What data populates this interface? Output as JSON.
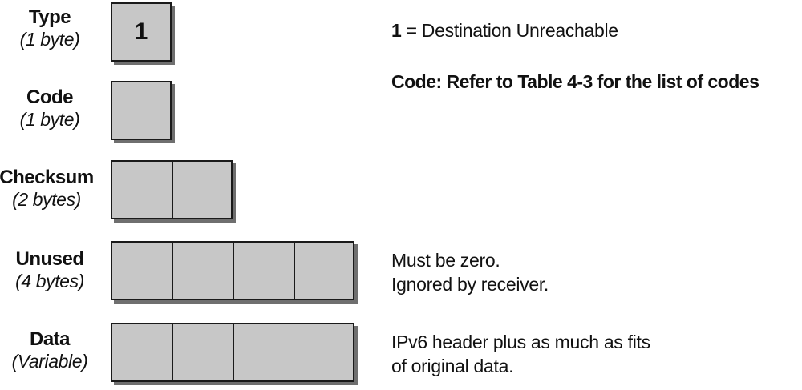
{
  "fields": [
    {
      "name": "Type",
      "size": "(1 byte)",
      "value": "1"
    },
    {
      "name": "Code",
      "size": "(1 byte)",
      "value": ""
    },
    {
      "name": "Checksum",
      "size": "(2 bytes)"
    },
    {
      "name": "Unused",
      "size": "(4 bytes)"
    },
    {
      "name": "Data",
      "size": "(Variable)"
    }
  ],
  "descriptions": {
    "type_value": "1",
    "type_text": " = Destination Unreachable",
    "code_text": "Code: Refer to Table 4-3 for the list of codes",
    "unused_line1": "Must be zero.",
    "unused_line2": "Ignored by receiver.",
    "data_line1": "IPv6 header plus as much as fits",
    "data_line2": "of original data."
  },
  "colors": {
    "box_fill": "#c7c7c7",
    "box_border": "#1a1a1a",
    "box_shadow": "#6f6f6f"
  }
}
